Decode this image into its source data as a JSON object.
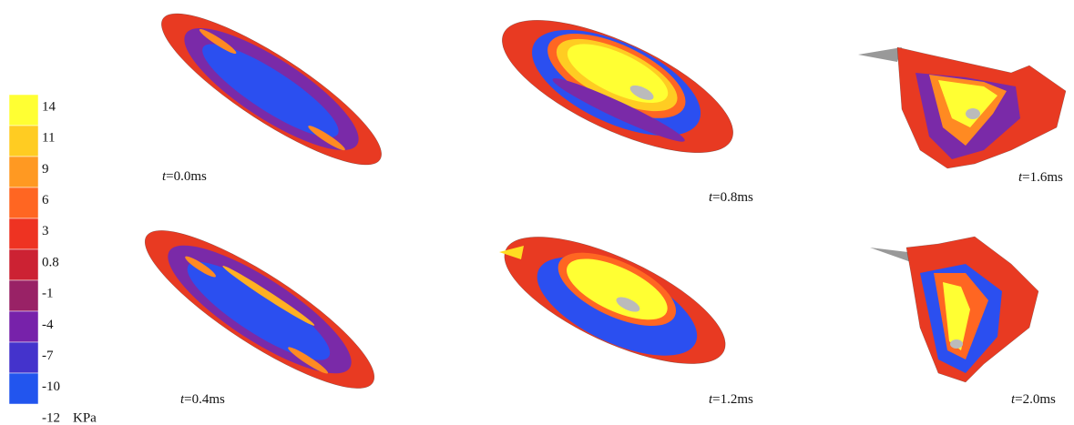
{
  "colorbar": {
    "ticks": [
      14,
      11,
      9,
      6,
      3,
      0.8,
      -1,
      -4,
      -7,
      -10,
      -12
    ],
    "unit": "KPa",
    "colors": [
      "#ffff33",
      "#ffcc22",
      "#ff9922",
      "#ff6622",
      "#ee3322",
      "#cc2233",
      "#992266",
      "#7722aa",
      "#4433cc",
      "#2255ee"
    ]
  },
  "panels": [
    {
      "var": "t",
      "rest": "=0.0ms"
    },
    {
      "var": "t",
      "rest": "=0.8ms"
    },
    {
      "var": "t",
      "rest": "=1.6ms"
    },
    {
      "var": "t",
      "rest": "=0.4ms"
    },
    {
      "var": "t",
      "rest": "=1.2ms"
    },
    {
      "var": "t",
      "rest": "=2.0ms"
    }
  ]
}
